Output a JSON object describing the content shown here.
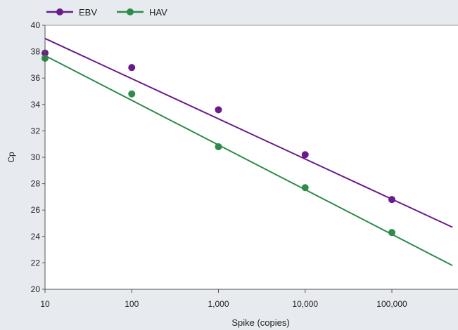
{
  "chart_data": {
    "type": "scatter",
    "xlabel": "Spike (copies)",
    "ylabel": "Cp",
    "x_scale": "log",
    "xlim": [
      10,
      500000
    ],
    "ylim": [
      20,
      40
    ],
    "x_ticks": [
      10,
      100,
      1000,
      10000,
      100000
    ],
    "x_tick_labels": [
      "10",
      "100",
      "1,000",
      "10,000",
      "100,000"
    ],
    "y_ticks": [
      20,
      22,
      24,
      26,
      28,
      30,
      32,
      34,
      36,
      38,
      40
    ],
    "legend_position": "top-left",
    "grid": false,
    "series": [
      {
        "name": "EBV",
        "color": "#6a1b8a",
        "x": [
          10,
          100,
          1000,
          10000,
          100000
        ],
        "y": [
          37.9,
          36.8,
          33.6,
          30.2,
          26.8
        ],
        "trendline": {
          "x": [
            10,
            500000
          ],
          "y": [
            39.0,
            24.7
          ]
        }
      },
      {
        "name": "HAV",
        "color": "#2e8b4a",
        "x": [
          10,
          100,
          1000,
          10000,
          100000
        ],
        "y": [
          37.5,
          34.8,
          30.8,
          27.7,
          24.3
        ],
        "trendline": {
          "x": [
            10,
            500000
          ],
          "y": [
            37.7,
            21.8
          ]
        }
      }
    ]
  }
}
